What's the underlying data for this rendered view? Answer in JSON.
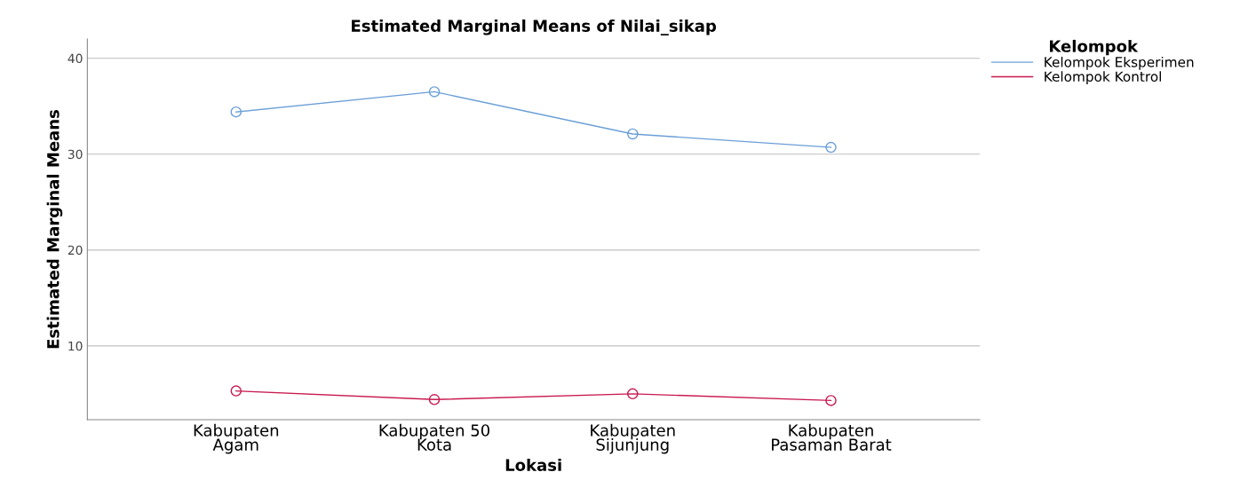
{
  "chart_data": {
    "type": "line",
    "title": "Estimated Marginal Means of Nilai_sikap",
    "xlabel": "Lokasi",
    "ylabel": "Estimated Marginal Means",
    "legend_title": "Kelompok",
    "categories": [
      "Kabupaten\nAgam",
      "Kabupaten 50\nKota",
      "Kabupaten\nSijunjung",
      "Kabupaten\nPasaman Barat"
    ],
    "series": [
      {
        "name": "Kelompok Eksperimen",
        "color": "#6a9fd8",
        "values": [
          34.4,
          36.5,
          32.1,
          30.7
        ]
      },
      {
        "name": "Kelompok Kontrol",
        "color": "#c8194f",
        "values": [
          5.3,
          4.4,
          5.0,
          4.3
        ]
      }
    ],
    "ylim": [
      2.3,
      42
    ],
    "yticks": [
      10,
      20,
      30,
      40
    ],
    "grid": "y",
    "legend": "top right",
    "marker": "circle",
    "line_style": "solid"
  }
}
